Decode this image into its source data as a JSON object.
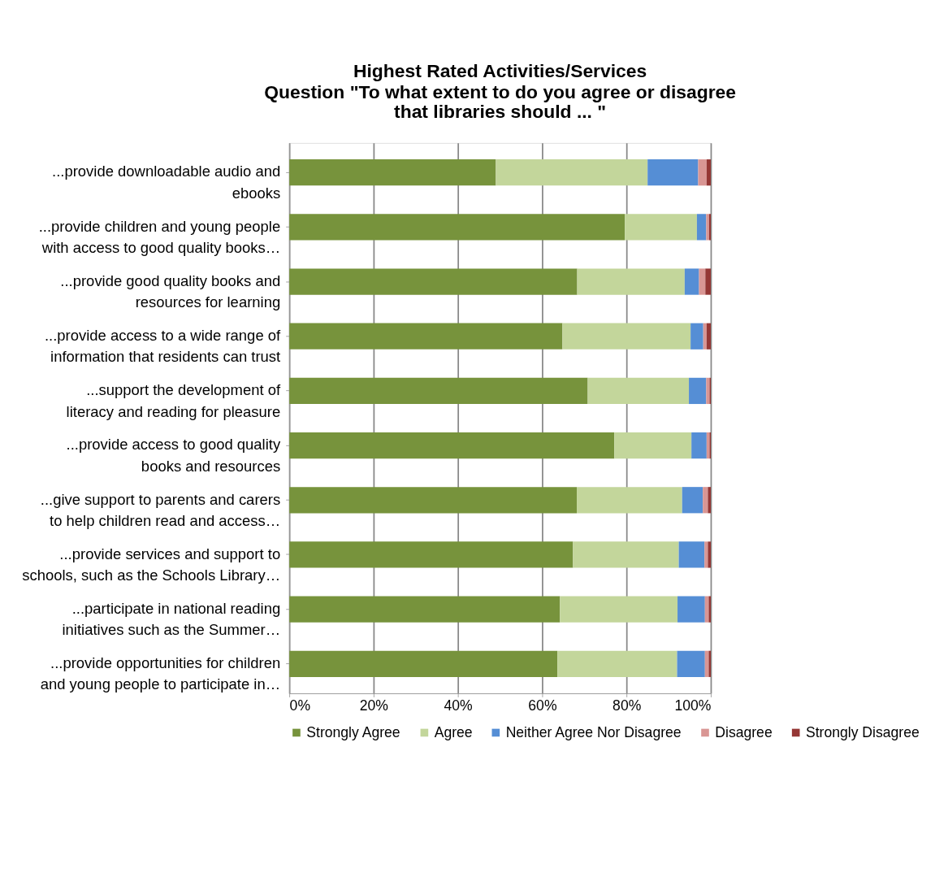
{
  "chart_data": {
    "type": "bar",
    "orientation": "horizontal",
    "stacked": true,
    "title": "Highest Rated Activities/Services",
    "subtitle": "Question \"To what extent to do you agree or disagree that libraries should ... \"",
    "categories": [
      "...provide downloadable audio and ebooks",
      "...provide children and young people with access to good quality books…",
      "...provide good quality books and resources for learning",
      "...provide access to a wide range of information that residents can trust",
      "...support the development of literacy and reading for pleasure",
      "...provide access to good quality books and resources",
      "...give support to parents and carers to help children read and access…",
      "...provide services and support to schools, such as the Schools Library…",
      "...participate in national reading initiatives such as the Summer…",
      "...provide opportunities for children and young people to participate in…"
    ],
    "series": [
      {
        "name": "Strongly Agree",
        "color": "#77933c",
        "values": [
          49,
          79.6,
          68.3,
          64.8,
          70.8,
          77.1,
          68.2,
          67.3,
          64.2,
          63.6
        ]
      },
      {
        "name": "Agree",
        "color": "#c3d69b",
        "values": [
          36,
          17.1,
          25.5,
          30.4,
          24,
          18.3,
          25,
          25.1,
          27.9,
          28.4
        ]
      },
      {
        "name": "Neither Agree Nor Disagree",
        "color": "#558ed5",
        "values": [
          12,
          2.2,
          3.4,
          3,
          4.1,
          3.6,
          4.9,
          6.1,
          6.5,
          6.6
        ]
      },
      {
        "name": "Disagree",
        "color": "#d99694",
        "values": [
          2,
          0.7,
          1.5,
          0.8,
          0.8,
          0.7,
          1.2,
          0.8,
          0.9,
          0.9
        ]
      },
      {
        "name": "Strongly Disagree",
        "color": "#953735",
        "values": [
          1,
          0.4,
          1.3,
          1,
          0.3,
          0.3,
          0.7,
          0.7,
          0.5,
          0.5
        ]
      }
    ],
    "xlim": [
      0,
      100
    ],
    "xticks": [
      {
        "value": 0,
        "label": "0%"
      },
      {
        "value": 20,
        "label": "20%"
      },
      {
        "value": 40,
        "label": "40%"
      },
      {
        "value": 60,
        "label": "60%"
      },
      {
        "value": 80,
        "label": "80%"
      },
      {
        "value": 100,
        "label": "100%"
      }
    ],
    "grid": "x",
    "legend": "bottom"
  }
}
